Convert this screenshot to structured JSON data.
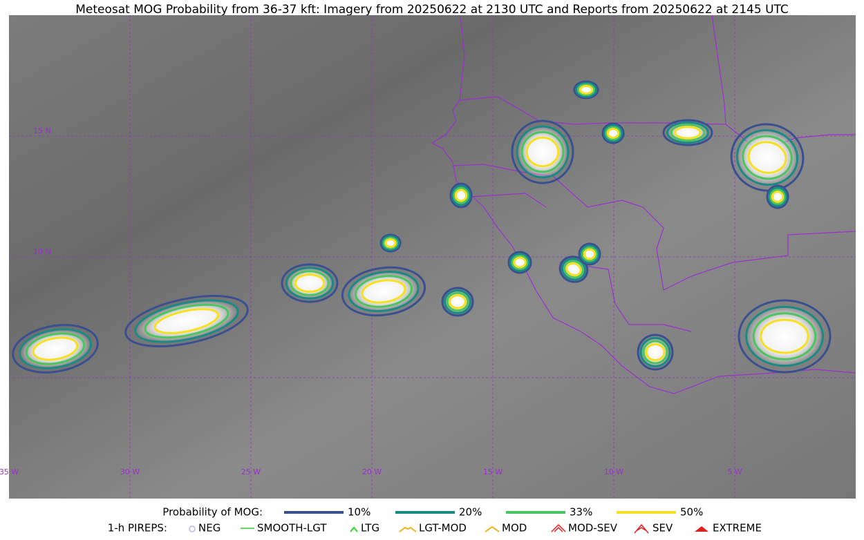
{
  "title": "Meteosat MOG Probability from 36-37 kft: Imagery from 20250622 at 2130 UTC and Reports from 20250622 at 2145 UTC",
  "map": {
    "lat_labels": [
      "15 N",
      "10 N"
    ],
    "lon_labels": [
      "35 W",
      "30 W",
      "25 W",
      "20 W",
      "15 W",
      "10 W",
      "5 W"
    ]
  },
  "legend": {
    "probability": {
      "label": "Probability of MOG:",
      "items": [
        {
          "label": "10%",
          "color": "#3a4f8f"
        },
        {
          "label": "20%",
          "color": "#1b8a85"
        },
        {
          "label": "33%",
          "color": "#4cc460"
        },
        {
          "label": "50%",
          "color": "#f7e020"
        }
      ]
    },
    "pireps": {
      "label": "1-h PIREPS:",
      "items": [
        {
          "label": "NEG",
          "color": "#b8b8f0"
        },
        {
          "label": "SMOOTH-LGT",
          "color": "#33cc33"
        },
        {
          "label": "LTG",
          "color": "#22dd22"
        },
        {
          "label": "LGT-MOD",
          "color": "#f0b020"
        },
        {
          "label": "MOD",
          "color": "#f0b020"
        },
        {
          "label": "MOD-SEV",
          "color": "#e02020"
        },
        {
          "label": "SEV",
          "color": "#e02020"
        },
        {
          "label": "EXTREME",
          "color": "#e02020"
        }
      ]
    }
  }
}
